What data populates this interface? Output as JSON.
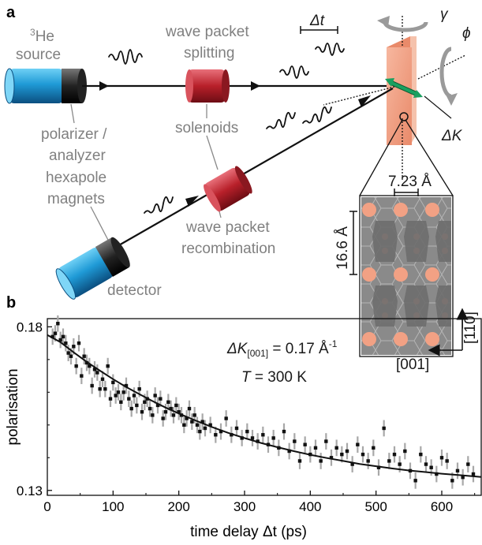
{
  "figure": {
    "panel_a": "a",
    "panel_b": "b",
    "labels": {
      "source_sup": "3",
      "source_line1": "He",
      "source_line2": "source",
      "splitting_line1": "wave packet",
      "splitting_line2": "splitting",
      "delta_t": "Δt",
      "gamma": "γ",
      "phi": "ϕ",
      "delta_k": "ΔK",
      "polarizer_line1": "polarizer /",
      "polarizer_line2": "analyzer",
      "polarizer_line3": "hexapole",
      "polarizer_line4": "magnets",
      "solenoids": "solenoids",
      "recomb_line1": "wave packet",
      "recomb_line2": "recombination",
      "detector": "detector",
      "lattice_a": "7.23 Å",
      "lattice_b": "16.6 Å",
      "dir_vertical": "[11̅0]",
      "dir_horizontal": "[001]"
    },
    "annotation": {
      "dk_main": "ΔK",
      "dk_sub": "[001]",
      "dk_eq": " = 0.17 Å",
      "dk_exp": "-1",
      "t_main": "T",
      "t_eq": " = 300 K"
    },
    "colors": {
      "source_blue": "#1f9ad6",
      "solenoid_red": "#b8202a",
      "sample_orange": "#f2a184",
      "arrow_green": "#1aa060",
      "label_gray": "#808080"
    }
  },
  "chart_data": {
    "type": "scatter",
    "xlabel": "time delay Δt (ps)",
    "ylabel": "polarisation",
    "xlim": [
      0,
      660
    ],
    "ylim": [
      0.1285,
      0.1825
    ],
    "x_ticks": [
      "0",
      "100",
      "200",
      "300",
      "400",
      "500",
      "600"
    ],
    "y_ticks": [
      "0.13",
      "0.18"
    ],
    "series": [
      {
        "kind": "points_with_errorbars",
        "x": [
          8,
          12,
          16,
          20,
          24,
          28,
          32,
          36,
          40,
          44,
          48,
          52,
          56,
          60,
          64,
          68,
          72,
          76,
          80,
          84,
          88,
          92,
          96,
          100,
          104,
          108,
          112,
          116,
          120,
          124,
          128,
          132,
          136,
          140,
          144,
          148,
          152,
          156,
          160,
          164,
          168,
          172,
          176,
          180,
          184,
          188,
          192,
          196,
          200,
          204,
          208,
          212,
          216,
          220,
          224,
          228,
          232,
          236,
          240,
          248,
          256,
          264,
          272,
          280,
          288,
          296,
          304,
          312,
          320,
          328,
          336,
          344,
          352,
          360,
          368,
          376,
          384,
          392,
          400,
          408,
          416,
          424,
          432,
          440,
          448,
          456,
          464,
          472,
          480,
          488,
          496,
          504,
          512,
          520,
          528,
          536,
          544,
          552,
          560,
          568,
          576,
          584,
          592,
          600,
          608,
          616,
          624,
          632,
          640,
          648
        ],
        "y": [
          0.177,
          0.178,
          0.181,
          0.176,
          0.177,
          0.175,
          0.172,
          0.171,
          0.174,
          0.168,
          0.175,
          0.165,
          0.171,
          0.169,
          0.168,
          0.162,
          0.167,
          0.166,
          0.161,
          0.164,
          0.161,
          0.168,
          0.158,
          0.163,
          0.159,
          0.16,
          0.157,
          0.16,
          0.162,
          0.158,
          0.155,
          0.159,
          0.156,
          0.161,
          0.154,
          0.157,
          0.158,
          0.155,
          0.153,
          0.159,
          0.156,
          0.158,
          0.152,
          0.154,
          0.157,
          0.155,
          0.153,
          0.156,
          0.154,
          0.153,
          0.15,
          0.152,
          0.155,
          0.151,
          0.153,
          0.15,
          0.148,
          0.151,
          0.149,
          0.15,
          0.147,
          0.148,
          0.152,
          0.147,
          0.149,
          0.146,
          0.148,
          0.146,
          0.145,
          0.147,
          0.144,
          0.146,
          0.143,
          0.148,
          0.142,
          0.145,
          0.139,
          0.144,
          0.141,
          0.143,
          0.139,
          0.145,
          0.14,
          0.143,
          0.141,
          0.142,
          0.138,
          0.144,
          0.141,
          0.139,
          0.143,
          0.137,
          0.149,
          0.139,
          0.141,
          0.138,
          0.142,
          0.136,
          0.133,
          0.141,
          0.138,
          0.137,
          0.135,
          0.14,
          0.139,
          0.133,
          0.136,
          0.134,
          0.138,
          0.135
        ],
        "err": 0.0025
      },
      {
        "kind": "fit_line",
        "x": [
          0,
          20,
          40,
          60,
          80,
          100,
          120,
          140,
          160,
          180,
          200,
          225,
          250,
          275,
          300,
          325,
          350,
          375,
          400,
          425,
          450,
          475,
          500,
          525,
          550,
          575,
          600,
          625,
          660
        ],
        "y": [
          0.1775,
          0.1753,
          0.1722,
          0.1693,
          0.1666,
          0.164,
          0.1616,
          0.1594,
          0.1573,
          0.1553,
          0.1535,
          0.1514,
          0.1494,
          0.1476,
          0.146,
          0.1445,
          0.1432,
          0.142,
          0.1409,
          0.1399,
          0.139,
          0.1381,
          0.1374,
          0.1367,
          0.1361,
          0.1356,
          0.1351,
          0.1347,
          0.1341
        ]
      }
    ],
    "grid": false,
    "legend": "none"
  }
}
